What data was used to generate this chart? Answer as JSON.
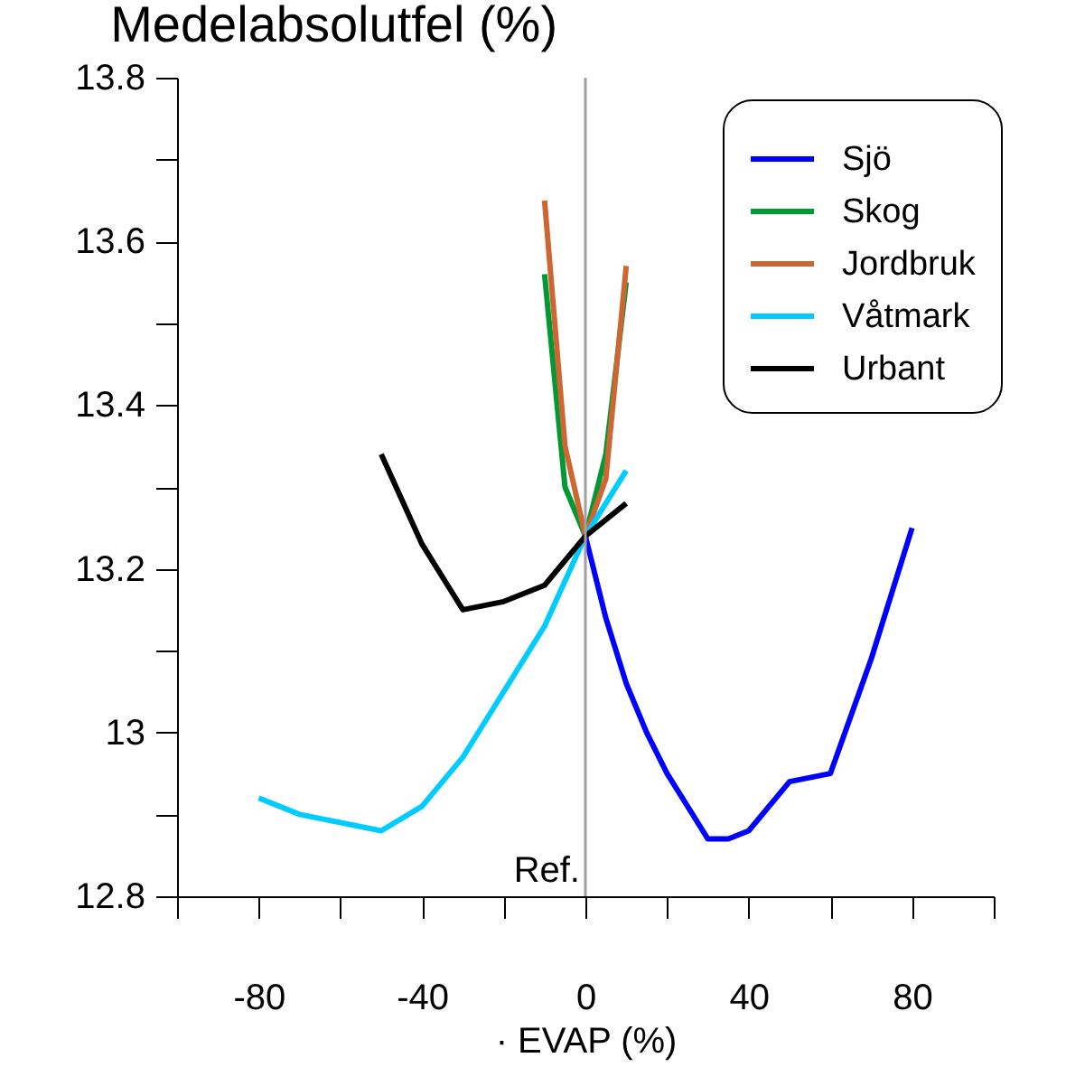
{
  "chart_data": {
    "type": "line",
    "title": "Medelabsolutfel (%)",
    "xlabel": "· EVAP (%)",
    "xlim": [
      -100,
      100
    ],
    "ylim": [
      12.8,
      13.8
    ],
    "xticks": [
      {
        "value": -100,
        "label": null
      },
      -80,
      {
        "value": -60,
        "label": null
      },
      -40,
      {
        "value": -20,
        "label": null
      },
      0,
      {
        "value": 20,
        "label": null
      },
      40,
      {
        "value": 60,
        "label": null
      },
      80,
      {
        "value": 100,
        "label": null
      }
    ],
    "yticks": [
      12.8,
      {
        "value": 12.9,
        "label": null
      },
      {
        "value": 13.0,
        "label": "13"
      },
      {
        "value": 13.1,
        "label": null
      },
      13.2,
      {
        "value": 13.3,
        "label": null
      },
      13.4,
      {
        "value": 13.5,
        "label": null
      },
      13.6,
      {
        "value": 13.7,
        "label": null
      },
      13.8
    ],
    "legend": "top right",
    "grid": false,
    "ref_lines": [
      {
        "axis": "x",
        "value": 0,
        "label": "Ref.",
        "color": "#a0a0a0"
      }
    ],
    "series": [
      {
        "name": "Sjö",
        "color": "#0000ff",
        "x": [
          0,
          5,
          10,
          15,
          20,
          30,
          35,
          40,
          50,
          60,
          70,
          80
        ],
        "values": [
          13.24,
          13.14,
          13.06,
          13.0,
          12.95,
          12.87,
          12.87,
          12.88,
          12.94,
          12.95,
          13.09,
          13.25
        ]
      },
      {
        "name": "Skog",
        "color": "#009933",
        "x": [
          -10,
          -5,
          0,
          5,
          10
        ],
        "values": [
          13.56,
          13.3,
          13.24,
          13.34,
          13.55
        ]
      },
      {
        "name": "Jordbruk",
        "color": "#cc6633",
        "x": [
          -10,
          -5,
          0,
          5,
          10
        ],
        "values": [
          13.65,
          13.35,
          13.24,
          13.31,
          13.57
        ]
      },
      {
        "name": "Våtmark",
        "color": "#00ccff",
        "x": [
          -80,
          -70,
          -50,
          -40,
          -30,
          -20,
          -10,
          0,
          10
        ],
        "values": [
          12.92,
          12.9,
          12.88,
          12.91,
          12.97,
          13.05,
          13.13,
          13.24,
          13.32
        ]
      },
      {
        "name": "Urbant",
        "color": "#000000",
        "x": [
          -50,
          -40,
          -30,
          -20,
          -10,
          0,
          10
        ],
        "values": [
          13.34,
          13.23,
          13.15,
          13.16,
          13.18,
          13.24,
          13.28
        ]
      }
    ]
  }
}
